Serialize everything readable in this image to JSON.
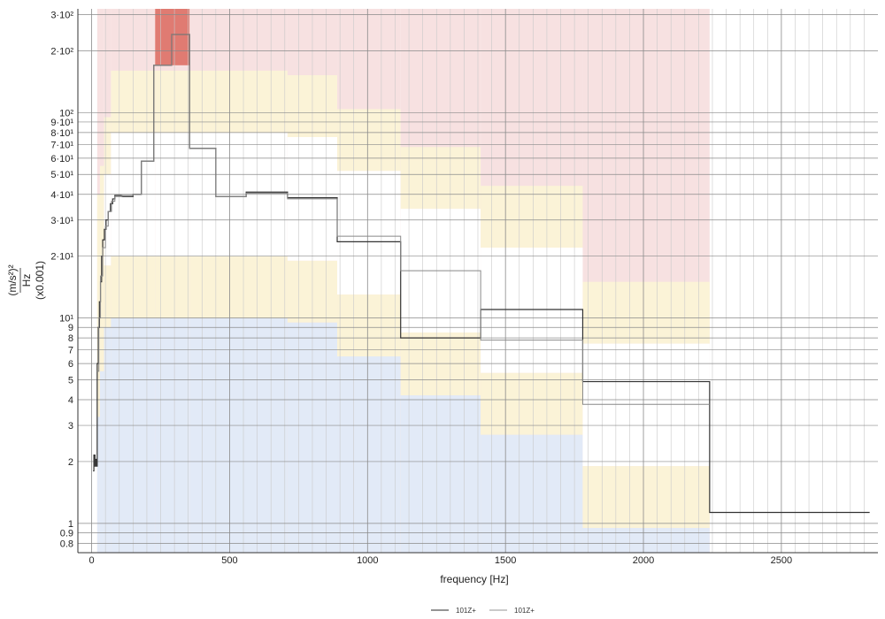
{
  "chart_data": {
    "type": "line",
    "xlabel": "frequency [Hz]",
    "ylabel": {
      "numerator": "(m/s²)²",
      "denominator": "Hz",
      "scale": "(x0.001)"
    },
    "xscale": "linear",
    "yscale": "log",
    "xlim": [
      -50,
      2850
    ],
    "ylim": [
      0.72,
      320
    ],
    "grid": true,
    "legend_position": "bottom-center",
    "x_ticks": [
      0,
      500,
      1000,
      1500,
      2000,
      2500
    ],
    "x_tick_labels": [
      "0",
      "500",
      "1000",
      "1500",
      "2000",
      "2500"
    ],
    "y_ticks": [
      0.8,
      0.9,
      1,
      2,
      3,
      4,
      5,
      6,
      7,
      8,
      9,
      10,
      20,
      30,
      40,
      50,
      60,
      70,
      80,
      90,
      100,
      200,
      300
    ],
    "y_tick_labels": [
      "0.8",
      "0.9",
      "1",
      "2",
      "3",
      "4",
      "5",
      "6",
      "7",
      "8",
      "9",
      "10¹",
      "2·10¹",
      "3·10¹",
      "4·10¹",
      "5·10¹",
      "6·10¹",
      "7·10¹",
      "8·10¹",
      "9·10¹",
      "10²",
      "2·10²",
      "3·10²"
    ],
    "bands": {
      "colors": {
        "alarm": "#f7e1e1",
        "alarm_exceeded": "#e07b72",
        "warning": "#fbf3d7",
        "normal": "#e2eaf7"
      },
      "alarm_top": 320,
      "segments": [
        {
          "x": [
            20,
            30
          ],
          "normal_top": 3.3,
          "warning_top": 7.5,
          "lower_warn_bottom": 0,
          "upper_warn_top": 40
        },
        {
          "x": [
            30,
            45
          ],
          "normal_top": 5.5,
          "warning_top": 14,
          "lower_warn_bottom": 0,
          "upper_warn_top": 55
        },
        {
          "x": [
            45,
            70
          ],
          "normal_top": 9,
          "warning_top": 18,
          "upper_warn_bottom": 50,
          "upper_warn_top": 95
        },
        {
          "x": [
            70,
            230
          ],
          "normal_top": 10,
          "warning_top": 20,
          "upper_warn_bottom": 80,
          "upper_warn_top": 160
        },
        {
          "x": [
            230,
            355
          ],
          "normal_top": 10,
          "warning_top": 20,
          "upper_warn_bottom": 80,
          "upper_warn_top": 160,
          "exceeded_bottom": 170
        },
        {
          "x": [
            355,
            710
          ],
          "normal_top": 10,
          "warning_top": 20,
          "upper_warn_bottom": 80,
          "upper_warn_top": 160
        },
        {
          "x": [
            710,
            890
          ],
          "normal_top": 9.5,
          "warning_top": 19,
          "upper_warn_bottom": 76,
          "upper_warn_top": 152
        },
        {
          "x": [
            890,
            1120
          ],
          "normal_top": 6.5,
          "warning_top": 13,
          "upper_warn_bottom": 52,
          "upper_warn_top": 104
        },
        {
          "x": [
            1120,
            1410
          ],
          "normal_top": 4.2,
          "warning_top": 8.5,
          "upper_warn_bottom": 34,
          "upper_warn_top": 68
        },
        {
          "x": [
            1410,
            1780
          ],
          "normal_top": 2.7,
          "warning_top": 5.4,
          "upper_warn_bottom": 22,
          "upper_warn_top": 44
        },
        {
          "x": [
            1780,
            2240
          ],
          "normal_top": 0.95,
          "warning_top": 1.9,
          "upper_warn_bottom": 7.5,
          "upper_warn_top": 15
        }
      ]
    },
    "series": [
      {
        "name": "101Z+",
        "color": "#333333",
        "width": 1.2,
        "step": true,
        "points": [
          [
            5,
            1.8
          ],
          [
            8,
            2.15
          ],
          [
            12,
            1.9
          ],
          [
            14,
            2.05
          ],
          [
            18,
            1.9
          ],
          [
            20,
            6
          ],
          [
            24,
            9
          ],
          [
            28,
            12
          ],
          [
            32,
            15
          ],
          [
            36,
            20
          ],
          [
            40,
            24
          ],
          [
            46,
            27
          ],
          [
            52,
            30
          ],
          [
            60,
            33
          ],
          [
            68,
            36
          ],
          [
            76,
            38
          ],
          [
            84,
            39.5
          ],
          [
            110,
            39
          ],
          [
            150,
            40
          ],
          [
            180,
            58
          ],
          [
            225,
            170
          ],
          [
            290,
            240
          ],
          [
            355,
            67
          ],
          [
            450,
            39
          ],
          [
            560,
            41
          ],
          [
            710,
            38.5
          ],
          [
            890,
            23.5
          ],
          [
            1120,
            8
          ],
          [
            1410,
            11
          ],
          [
            1780,
            4.9
          ],
          [
            2240,
            1.13
          ],
          [
            2820,
            1.13
          ]
        ]
      },
      {
        "name": "101Z+",
        "color": "#888888",
        "width": 1.0,
        "step": true,
        "points": [
          [
            20,
            5.5
          ],
          [
            26,
            10
          ],
          [
            32,
            16
          ],
          [
            40,
            22
          ],
          [
            50,
            28
          ],
          [
            60,
            33
          ],
          [
            72,
            37
          ],
          [
            84,
            39
          ],
          [
            110,
            39.5
          ],
          [
            150,
            40
          ],
          [
            180,
            58
          ],
          [
            225,
            170
          ],
          [
            290,
            240
          ],
          [
            355,
            67
          ],
          [
            450,
            39
          ],
          [
            560,
            40.5
          ],
          [
            710,
            38
          ],
          [
            890,
            25
          ],
          [
            1120,
            17
          ],
          [
            1410,
            7.8
          ],
          [
            1780,
            3.8
          ],
          [
            2240,
            3.8
          ]
        ]
      }
    ],
    "legend": [
      {
        "label": "101Z+",
        "color": "#555555"
      },
      {
        "label": "101Z+",
        "color": "#aaaaaa"
      }
    ]
  }
}
